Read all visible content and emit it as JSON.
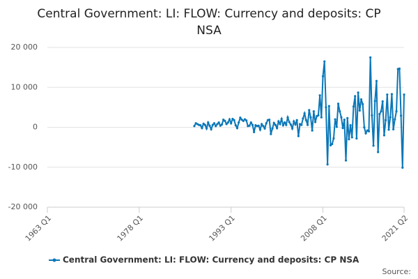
{
  "chart_data": {
    "type": "line",
    "title": "Central Government: LI: FLOW: Currency and deposits: CP NSA",
    "source": "Source:",
    "xlim": [
      1963,
      2021.25
    ],
    "xticks": [
      {
        "value": 1963,
        "label": "1963 Q1"
      },
      {
        "value": 1978,
        "label": "1978 Q1"
      },
      {
        "value": 1993,
        "label": "1993 Q1"
      },
      {
        "value": 2008,
        "label": "2008 Q1"
      },
      {
        "value": 2021.25,
        "label": "2021 Q2"
      }
    ],
    "ylim": [
      -20000,
      20000
    ],
    "yticks": [
      {
        "value": -20000,
        "label": "-20 000"
      },
      {
        "value": -10000,
        "label": "-10 000"
      },
      0,
      {
        "value": 10000,
        "label": "10 000"
      },
      {
        "value": 20000,
        "label": "20 000"
      }
    ],
    "grid": true,
    "legend": "bottom",
    "x": [
      1987,
      1987.25,
      1987.5,
      1987.75,
      1988,
      1988.25,
      1988.5,
      1988.75,
      1989,
      1989.25,
      1989.5,
      1989.75,
      1990,
      1990.25,
      1990.5,
      1990.75,
      1991,
      1991.25,
      1991.5,
      1991.75,
      1992,
      1992.25,
      1992.5,
      1992.75,
      1993,
      1993.25,
      1993.5,
      1993.75,
      1994,
      1994.25,
      1994.5,
      1994.75,
      1995,
      1995.25,
      1995.5,
      1995.75,
      1996,
      1996.25,
      1996.5,
      1996.75,
      1997,
      1997.25,
      1997.5,
      1997.75,
      1998,
      1998.25,
      1998.5,
      1998.75,
      1999,
      1999.25,
      1999.5,
      1999.75,
      2000,
      2000.25,
      2000.5,
      2000.75,
      2001,
      2001.25,
      2001.5,
      2001.75,
      2002,
      2002.25,
      2002.5,
      2002.75,
      2003,
      2003.25,
      2003.5,
      2003.75,
      2004,
      2004.25,
      2004.5,
      2004.75,
      2005,
      2005.25,
      2005.5,
      2005.75,
      2006,
      2006.25,
      2006.5,
      2006.75,
      2007,
      2007.25,
      2007.5,
      2007.75,
      2008,
      2008.25,
      2008.5,
      2008.75,
      2009,
      2009.25,
      2009.5,
      2009.75,
      2010,
      2010.25,
      2010.5,
      2010.75,
      2011,
      2011.25,
      2011.5,
      2011.75,
      2012,
      2012.25,
      2012.5,
      2012.75,
      2013,
      2013.25,
      2013.5,
      2013.75,
      2014,
      2014.25,
      2014.5,
      2014.75,
      2015,
      2015.25,
      2015.5,
      2015.75,
      2016,
      2016.25,
      2016.5,
      2016.75,
      2017,
      2017.25,
      2017.5,
      2017.75,
      2018,
      2018.25,
      2018.5,
      2018.75,
      2019,
      2019.25,
      2019.5,
      2019.75,
      2020,
      2020.25,
      2020.5,
      2020.75,
      2021,
      2021.25
    ],
    "series": [
      {
        "name": "Central Government: LI: FLOW: Currency and deposits: CP NSA",
        "color": "#0a77b8",
        "values": [
          300,
          1000,
          800,
          600,
          500,
          -200,
          900,
          600,
          -300,
          1200,
          400,
          -500,
          600,
          1000,
          300,
          800,
          1200,
          400,
          700,
          1900,
          1600,
          800,
          1200,
          2000,
          1000,
          2100,
          1800,
          500,
          -200,
          1200,
          2400,
          1900,
          1600,
          2000,
          1700,
          300,
          400,
          1200,
          600,
          -1200,
          500,
          300,
          400,
          -600,
          800,
          300,
          -300,
          1000,
          1800,
          1900,
          -1700,
          -300,
          1100,
          600,
          -200,
          1500,
          800,
          2100,
          500,
          1200,
          600,
          2500,
          1300,
          700,
          -300,
          1500,
          700,
          1800,
          -2200,
          800,
          600,
          2200,
          3500,
          1800,
          600,
          4300,
          2500,
          -800,
          4000,
          1300,
          2800,
          3000,
          8000,
          2500,
          12800,
          16500,
          5000,
          -9300,
          5300,
          -4500,
          -4200,
          -2800,
          2000,
          100,
          5900,
          4000,
          2500,
          -200,
          1900,
          -8300,
          2300,
          -3000,
          500,
          -2500,
          5200,
          7800,
          -2800,
          8700,
          4200,
          7000,
          5800,
          0,
          -1500,
          -800,
          -1000,
          17500,
          3000,
          -4600,
          6600,
          11600,
          -6200,
          3300,
          4000,
          6500,
          -2000,
          1800,
          8200,
          -600,
          2500,
          8300,
          -500,
          2000,
          4000,
          14600,
          14700,
          2900,
          -10100,
          8200
        ]
      }
    ]
  }
}
